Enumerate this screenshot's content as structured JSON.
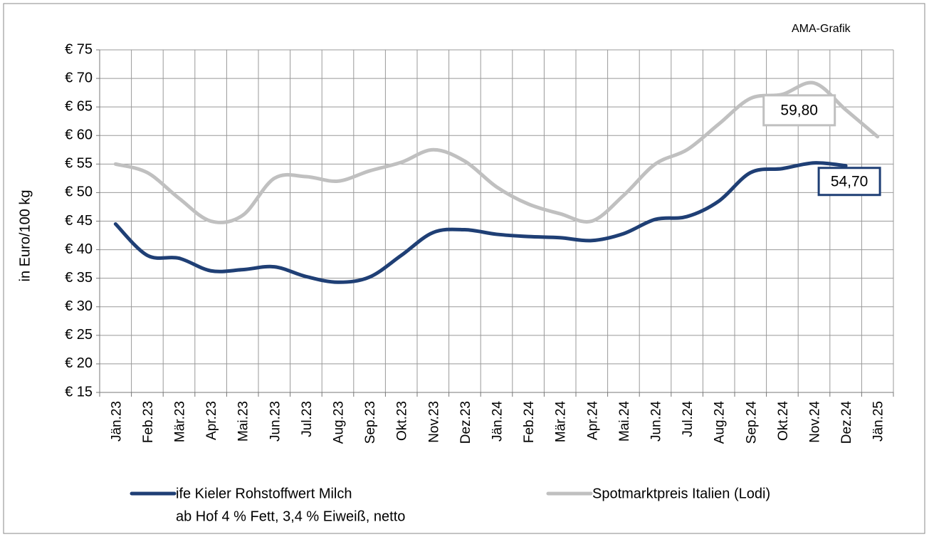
{
  "chart_data": {
    "type": "line",
    "source": "AMA-Grafik",
    "y_label": "in Euro/100 kg",
    "categories": [
      "Jän.23",
      "Feb.23",
      "Mär.23",
      "Apr.23",
      "Mai.23",
      "Jun.23",
      "Jul.23",
      "Aug.23",
      "Sep.23",
      "Okt.23",
      "Nov.23",
      "Dez.23",
      "Jän.24",
      "Feb.24",
      "Mär.24",
      "Apr.24",
      "Mai.24",
      "Jun.24",
      "Jul.24",
      "Aug.24",
      "Sep.24",
      "Okt.24",
      "Nov.24",
      "Dez.24",
      "Jän.25"
    ],
    "series": [
      {
        "name": "ife Kieler Rohstoffwert Milch",
        "note": "ab Hof 4 % Fett, 3,4 % Eiweiß, netto",
        "color": "#1f3f75",
        "values": [
          44.5,
          39,
          38.5,
          36.3,
          36.5,
          37,
          35.3,
          34.3,
          35.2,
          39,
          43,
          43.5,
          42.7,
          42.3,
          42.1,
          41.6,
          42.8,
          45.3,
          45.8,
          48.5,
          53.5,
          54.2,
          55.2,
          54.7,
          null
        ],
        "value_labels": [
          null,
          null,
          null,
          null,
          null,
          null,
          null,
          null,
          null,
          null,
          null,
          null,
          null,
          null,
          null,
          null,
          null,
          null,
          null,
          null,
          null,
          null,
          null,
          "54,70",
          null
        ]
      },
      {
        "name": "Spotmarktpreis Italien (Lodi)",
        "color": "#c0c0c0",
        "values": [
          55,
          53.5,
          49,
          45,
          46,
          52.5,
          52.8,
          52,
          53.8,
          55.3,
          57.5,
          55.5,
          51,
          48,
          46.3,
          45,
          49.5,
          55,
          57.5,
          62,
          66.5,
          67.2,
          69.2,
          64.5,
          59.8
        ],
        "value_labels": [
          null,
          null,
          null,
          null,
          null,
          null,
          null,
          null,
          null,
          null,
          null,
          null,
          null,
          null,
          null,
          null,
          null,
          null,
          null,
          null,
          null,
          null,
          null,
          null,
          "59,80"
        ]
      }
    ],
    "ylim": [
      15,
      75
    ],
    "yticks": [
      {
        "value": 15,
        "label": "€ 15"
      },
      {
        "value": 20,
        "label": "€ 20"
      },
      {
        "value": 25,
        "label": "€ 25"
      },
      {
        "value": 30,
        "label": "€ 30"
      },
      {
        "value": 35,
        "label": "€ 35"
      },
      {
        "value": 40,
        "label": "€ 40"
      },
      {
        "value": 45,
        "label": "€ 45"
      },
      {
        "value": 50,
        "label": "€ 50"
      },
      {
        "value": 55,
        "label": "€ 55"
      },
      {
        "value": 60,
        "label": "€ 60"
      },
      {
        "value": 65,
        "label": "€ 65"
      },
      {
        "value": 70,
        "label": "€ 70"
      },
      {
        "value": 75,
        "label": "€ 75"
      }
    ],
    "grid": true
  }
}
